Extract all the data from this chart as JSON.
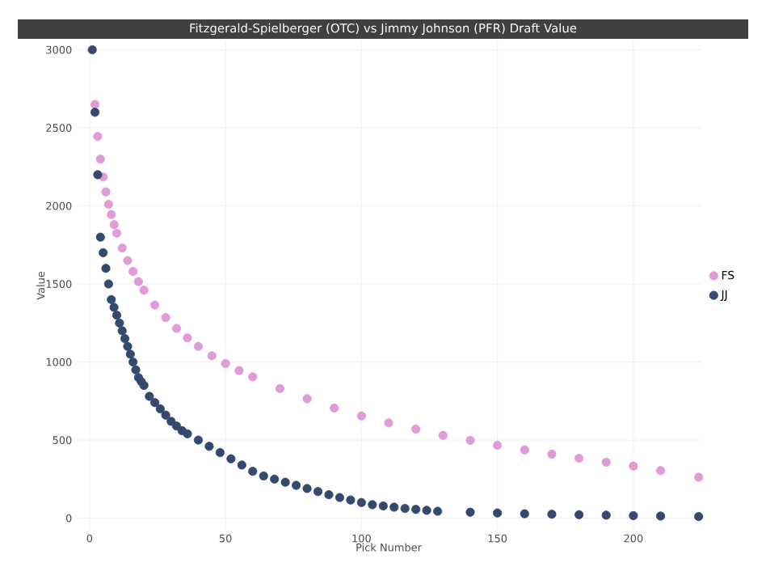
{
  "chart_data": {
    "type": "scatter",
    "title": "Fitzgerald-Spielberger (OTC) vs Jimmy Johnson (PFR) Draft Value",
    "xlabel": "Pick Number",
    "ylabel": "Value",
    "xlim": [
      -5,
      225
    ],
    "ylim": [
      -80,
      3060
    ],
    "xticks": [
      0,
      50,
      100,
      150,
      200
    ],
    "yticks": [
      0,
      500,
      1000,
      1500,
      2000,
      2500,
      3000
    ],
    "grid": true,
    "legend": "right",
    "marker": "circle",
    "series": [
      {
        "name": "FS",
        "color": "#e09bd9",
        "x": [
          2,
          3,
          4,
          5,
          6,
          7,
          8,
          9,
          10,
          12,
          14,
          16,
          18,
          20,
          24,
          28,
          32,
          36,
          40,
          45,
          50,
          55,
          60,
          70,
          80,
          90,
          100,
          110,
          120,
          130,
          140,
          150,
          160,
          170,
          180,
          190,
          200,
          210,
          224
        ],
        "values": [
          2650,
          2445,
          2300,
          2185,
          2090,
          2010,
          1945,
          1880,
          1825,
          1730,
          1650,
          1580,
          1515,
          1460,
          1365,
          1285,
          1215,
          1155,
          1100,
          1040,
          990,
          945,
          905,
          830,
          765,
          705,
          655,
          610,
          570,
          530,
          498,
          467,
          437,
          410,
          383,
          358,
          333,
          305,
          262
        ]
      },
      {
        "name": "JJ",
        "color": "#34496e",
        "x": [
          1,
          2,
          3,
          4,
          5,
          6,
          7,
          8,
          9,
          10,
          11,
          12,
          13,
          14,
          15,
          16,
          17,
          18,
          19,
          20,
          22,
          24,
          26,
          28,
          30,
          32,
          34,
          36,
          40,
          44,
          48,
          52,
          56,
          60,
          64,
          68,
          72,
          76,
          80,
          84,
          88,
          92,
          96,
          100,
          104,
          108,
          112,
          116,
          120,
          124,
          128,
          140,
          150,
          160,
          170,
          180,
          190,
          200,
          210,
          224
        ],
        "values": [
          3000,
          2600,
          2200,
          1800,
          1700,
          1600,
          1500,
          1400,
          1350,
          1300,
          1250,
          1200,
          1150,
          1100,
          1050,
          1000,
          950,
          900,
          875,
          850,
          780,
          740,
          700,
          660,
          620,
          590,
          560,
          540,
          500,
          460,
          420,
          380,
          340,
          300,
          270,
          250,
          230,
          210,
          190,
          170,
          150,
          132,
          116,
          100,
          86,
          78,
          70,
          62,
          56,
          50,
          44,
          38,
          33,
          28,
          25,
          22,
          19,
          16,
          13,
          10
        ]
      }
    ]
  }
}
